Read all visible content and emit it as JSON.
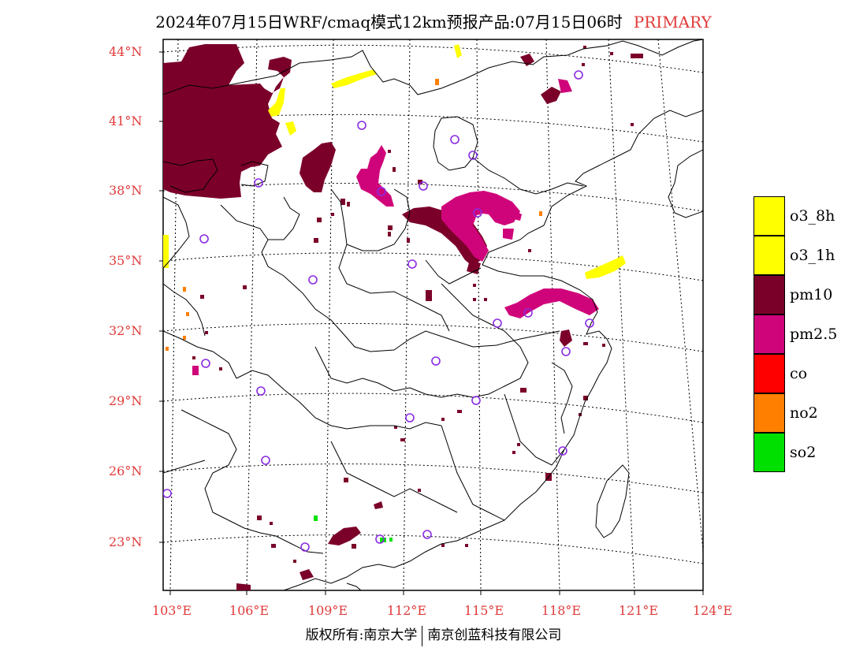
{
  "title": {
    "main": "2024年07月15日WRF/cmaq模式12km预报产品:07月15日06时",
    "tag": "PRIMARY"
  },
  "axes": {
    "lat_labels": [
      "44°N",
      "41°N",
      "38°N",
      "35°N",
      "32°N",
      "29°N",
      "26°N",
      "23°N"
    ],
    "lon_labels": [
      "103°E",
      "106°E",
      "109°E",
      "112°E",
      "115°E",
      "118°E",
      "121°E",
      "124°E"
    ]
  },
  "legend": [
    {
      "label": "o3_8h",
      "color": "#ffff00"
    },
    {
      "label": "o3_1h",
      "color": "#ffff00"
    },
    {
      "label": "pm10",
      "color": "#7b0029"
    },
    {
      "label": "pm2.5",
      "color": "#d0047a"
    },
    {
      "label": "co",
      "color": "#ff0000"
    },
    {
      "label": "no2",
      "color": "#ff7f00"
    },
    {
      "label": "so2",
      "color": "#00e000"
    }
  ],
  "footer": {
    "left": "版权所有:南京大学",
    "right": "南京创蓝科技有限公司"
  },
  "colors": {
    "pm10": "#7b0029",
    "pm25": "#d0047a",
    "o3": "#ffff00",
    "no2": "#ff7f00",
    "so2": "#00e000",
    "station": "#8a2be2",
    "label_red": "#e03a3a"
  }
}
